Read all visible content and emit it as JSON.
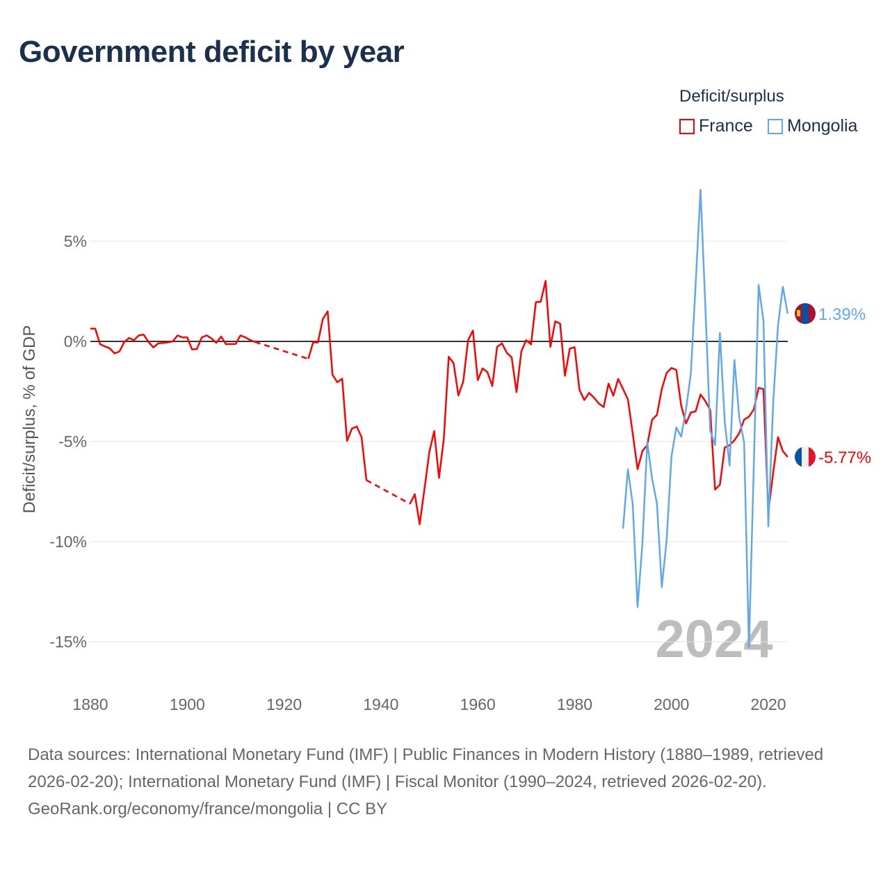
{
  "title": "Government deficit by year",
  "legend": {
    "title": "Deficit/surplus",
    "items": [
      {
        "label": "France",
        "color": "#ff0000"
      },
      {
        "label": "Mongolia",
        "color": "#5fa8ef"
      }
    ]
  },
  "current_year": "2024",
  "footer": {
    "sources": "Data sources: International Monetary Fund (IMF) | Public Finances in Modern History (1880–1989, retrieved 2026-02-20); International Monetary Fund (IMF) | Fiscal Monitor (1990–2024, retrieved 2026-02-20).",
    "credit": "GeoRank.org/economy/france/mongolia | CC BY"
  },
  "chart_data": {
    "type": "line",
    "title": "Government deficit by year",
    "xlabel": "",
    "ylabel": "Deficit/surplus, % of GDP",
    "xlim": [
      1880,
      2024
    ],
    "ylim": [
      -16.5,
      8.5
    ],
    "xticks": [
      1880,
      1900,
      1920,
      1940,
      1960,
      1980,
      2000,
      2020
    ],
    "xtick_labels": [
      "1880",
      "1900",
      "1920",
      "1940",
      "1960",
      "1980",
      "2000",
      "2020"
    ],
    "yticks": [
      5,
      0,
      -5,
      -10,
      -15
    ],
    "ytick_labels": [
      "5%",
      "0%",
      "-5%",
      "-10%",
      "-15%"
    ],
    "grid": true,
    "legend_position": "top-right",
    "series": [
      {
        "name": "France",
        "color": "#ff0000",
        "end_label": "-5.77%",
        "start_year": 1880,
        "values": [
          0.64,
          0.64,
          -0.14,
          -0.25,
          -0.35,
          -0.6,
          -0.5,
          -0.03,
          0.17,
          0.06,
          0.3,
          0.34,
          -0.03,
          -0.3,
          -0.1,
          -0.08,
          -0.05,
          0.0,
          0.3,
          0.2,
          0.2,
          -0.4,
          -0.38,
          0.2,
          0.3,
          0.15,
          -0.07,
          0.24,
          -0.14,
          -0.13,
          -0.13,
          0.3,
          0.2,
          0.07,
          -0.03,
          null,
          null,
          null,
          null,
          null,
          null,
          null,
          null,
          null,
          null,
          -0.87,
          -0.05,
          -0.05,
          1.12,
          1.5,
          -1.67,
          -2.04,
          -1.86,
          -4.97,
          -4.36,
          -4.25,
          -4.78,
          -6.93,
          null,
          null,
          null,
          null,
          null,
          null,
          null,
          null,
          -8.11,
          -7.63,
          -9.13,
          -7.36,
          -5.52,
          -4.48,
          -6.82,
          -4.83,
          -0.77,
          -1.08,
          -2.7,
          -2.0,
          0.06,
          0.54,
          -1.93,
          -1.35,
          -1.54,
          -2.23,
          -0.27,
          -0.1,
          -0.57,
          -0.8,
          -2.53,
          -0.5,
          0.06,
          -0.15,
          1.96,
          1.98,
          3.02,
          -0.27,
          1.0,
          0.89,
          -1.72,
          -0.36,
          -0.29,
          -2.42,
          -2.93,
          -2.57,
          -2.81,
          -3.1,
          -3.28,
          -2.11,
          -2.71,
          -1.87,
          -2.38,
          -2.89,
          -4.6,
          -6.38,
          -5.48,
          -5.17,
          -3.91,
          -3.67,
          -2.38,
          -1.57,
          -1.33,
          -1.42,
          -3.19,
          -4.1,
          -3.55,
          -3.49,
          -2.65,
          -2.98,
          -3.43,
          -7.4,
          -7.16,
          -5.3,
          -5.18,
          -4.94,
          -4.58,
          -3.91,
          -3.76,
          -3.4,
          -2.32,
          -2.38,
          -8.5,
          -6.56,
          -4.78,
          -5.48,
          -5.77
        ]
      },
      {
        "name": "Mongolia",
        "color": "#5fa8ef",
        "end_label": "1.39%",
        "start_year": 1990,
        "values": [
          -9.35,
          -6.38,
          -8.13,
          -13.26,
          -10.1,
          -5.03,
          -6.86,
          -8.1,
          -12.27,
          -9.93,
          -5.75,
          -4.3,
          -4.76,
          -3.4,
          -1.6,
          2.9,
          7.57,
          1.71,
          -4.45,
          -5.17,
          0.42,
          -4.0,
          -6.2,
          -0.93,
          -3.8,
          -5.05,
          -15.25,
          -6.2,
          2.82,
          1.02,
          -9.24,
          -3.1,
          0.8,
          2.73,
          1.39
        ]
      }
    ]
  }
}
